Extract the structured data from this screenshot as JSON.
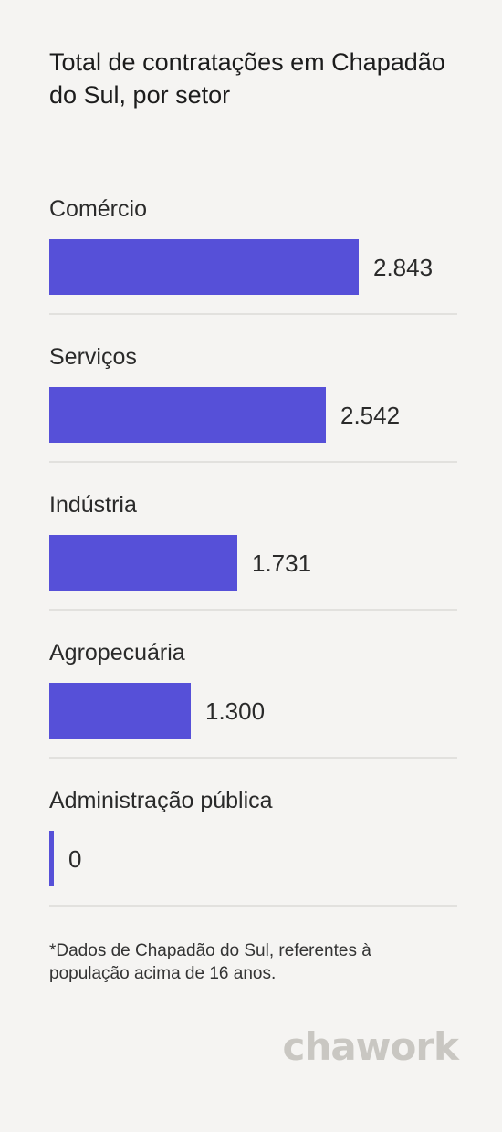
{
  "title": "Total de contratações em Chapadão do Sul, por setor",
  "chart_data": {
    "type": "bar",
    "orientation": "horizontal",
    "categories": [
      "Comércio",
      "Serviços",
      "Indústria",
      "Agropecuária",
      "Administração pública"
    ],
    "values": [
      2843,
      2542,
      1731,
      1300,
      0
    ],
    "value_labels": [
      "2.843",
      "2.542",
      "1.731",
      "1.300",
      "0"
    ],
    "title": "Total de contratações em Chapadão do Sul, por setor",
    "bar_color": "#5650d8"
  },
  "footnote": "*Dados de Chapadão do Sul, referentes à população acima de 16 anos.",
  "logo": "chawork"
}
